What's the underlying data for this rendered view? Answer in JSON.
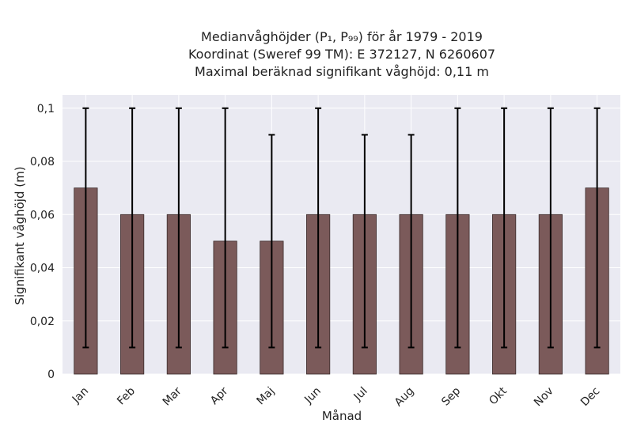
{
  "chart_data": {
    "type": "bar",
    "title_lines": [
      "Medianvåghöjder (P₁, P₉₉) för år 1979 - 2019",
      "Koordinat (Sweref 99 TM): E 372127, N 6260607",
      "Maximal beräknad signifikant våghöjd: 0,11 m"
    ],
    "xlabel": "Månad",
    "ylabel": "Signifikant våghöjd (m)",
    "categories": [
      "Jan",
      "Feb",
      "Mar",
      "Apr",
      "Maj",
      "Jun",
      "Jul",
      "Aug",
      "Sep",
      "Okt",
      "Nov",
      "Dec"
    ],
    "values": [
      0.07,
      0.06,
      0.06,
      0.05,
      0.05,
      0.06,
      0.06,
      0.06,
      0.06,
      0.06,
      0.06,
      0.07
    ],
    "p1": [
      0.01,
      0.01,
      0.01,
      0.01,
      0.01,
      0.01,
      0.01,
      0.01,
      0.01,
      0.01,
      0.01,
      0.01
    ],
    "p99": [
      0.1,
      0.1,
      0.1,
      0.1,
      0.09,
      0.1,
      0.09,
      0.09,
      0.1,
      0.1,
      0.1,
      0.1
    ],
    "ylim": [
      0,
      0.105
    ],
    "yticks": [
      0,
      0.02,
      0.04,
      0.06,
      0.08,
      0.1
    ],
    "ytick_labels": [
      "0",
      "0,02",
      "0,04",
      "0,06",
      "0,08",
      "0,1"
    ],
    "grid": true,
    "colors": {
      "bar": "#7b5a5a",
      "bar_edge": "#3a2a2a",
      "error": "#000000",
      "plot_bg": "#eaeaf2",
      "grid": "#ffffff"
    }
  }
}
